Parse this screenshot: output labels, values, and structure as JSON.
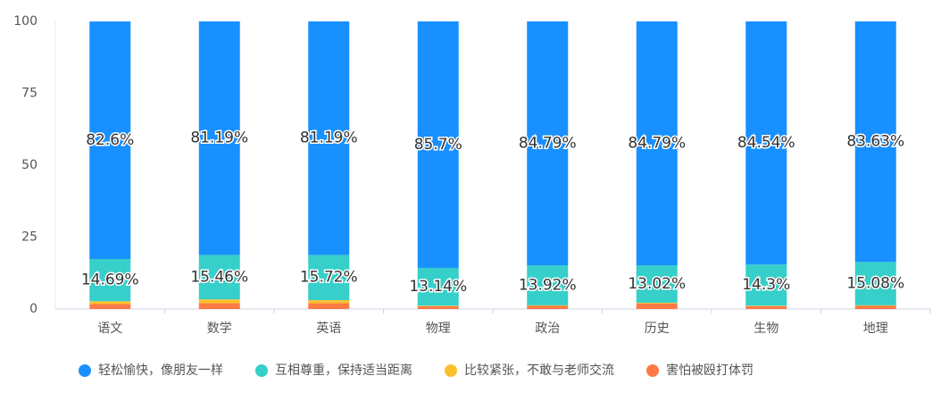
{
  "chart_data": {
    "type": "stacked_bar",
    "categories": [
      "语文",
      "数学",
      "英语",
      "物理",
      "政治",
      "历史",
      "生物",
      "地理"
    ],
    "series": [
      {
        "name": "害怕被殴打体罚",
        "color": "#ff7a45",
        "values": [
          1.7,
          2.0,
          2.0,
          1.0,
          1.1,
          1.9,
          1.0,
          1.1
        ]
      },
      {
        "name": "比较紧张，不敢与老师交流",
        "color": "#fbc02d",
        "values": [
          1.0,
          1.35,
          1.09,
          0.16,
          0.19,
          0.29,
          0.16,
          0.19
        ]
      },
      {
        "name": "互相尊重，保持适当距离",
        "color": "#36cfc9",
        "values": [
          14.69,
          15.46,
          15.72,
          13.14,
          13.92,
          13.02,
          14.3,
          15.08
        ],
        "value_labels": [
          "14.69%",
          "15.46%",
          "15.72%",
          "13.14%",
          "13.92%",
          "13.02%",
          "14.3%",
          "15.08%"
        ]
      },
      {
        "name": "轻松愉快，像朋友一样",
        "color": "#1890ff",
        "values": [
          82.6,
          81.19,
          81.19,
          85.7,
          84.79,
          84.79,
          84.54,
          83.63
        ],
        "value_labels": [
          "82.6%",
          "81.19%",
          "81.19%",
          "85.7%",
          "84.79%",
          "84.79%",
          "84.54%",
          "83.63%"
        ]
      }
    ],
    "legend_order": [
      3,
      2,
      1,
      0
    ],
    "ylim": [
      0,
      100
    ],
    "yticks": [
      0,
      25,
      50,
      75,
      100
    ],
    "grid": false
  }
}
